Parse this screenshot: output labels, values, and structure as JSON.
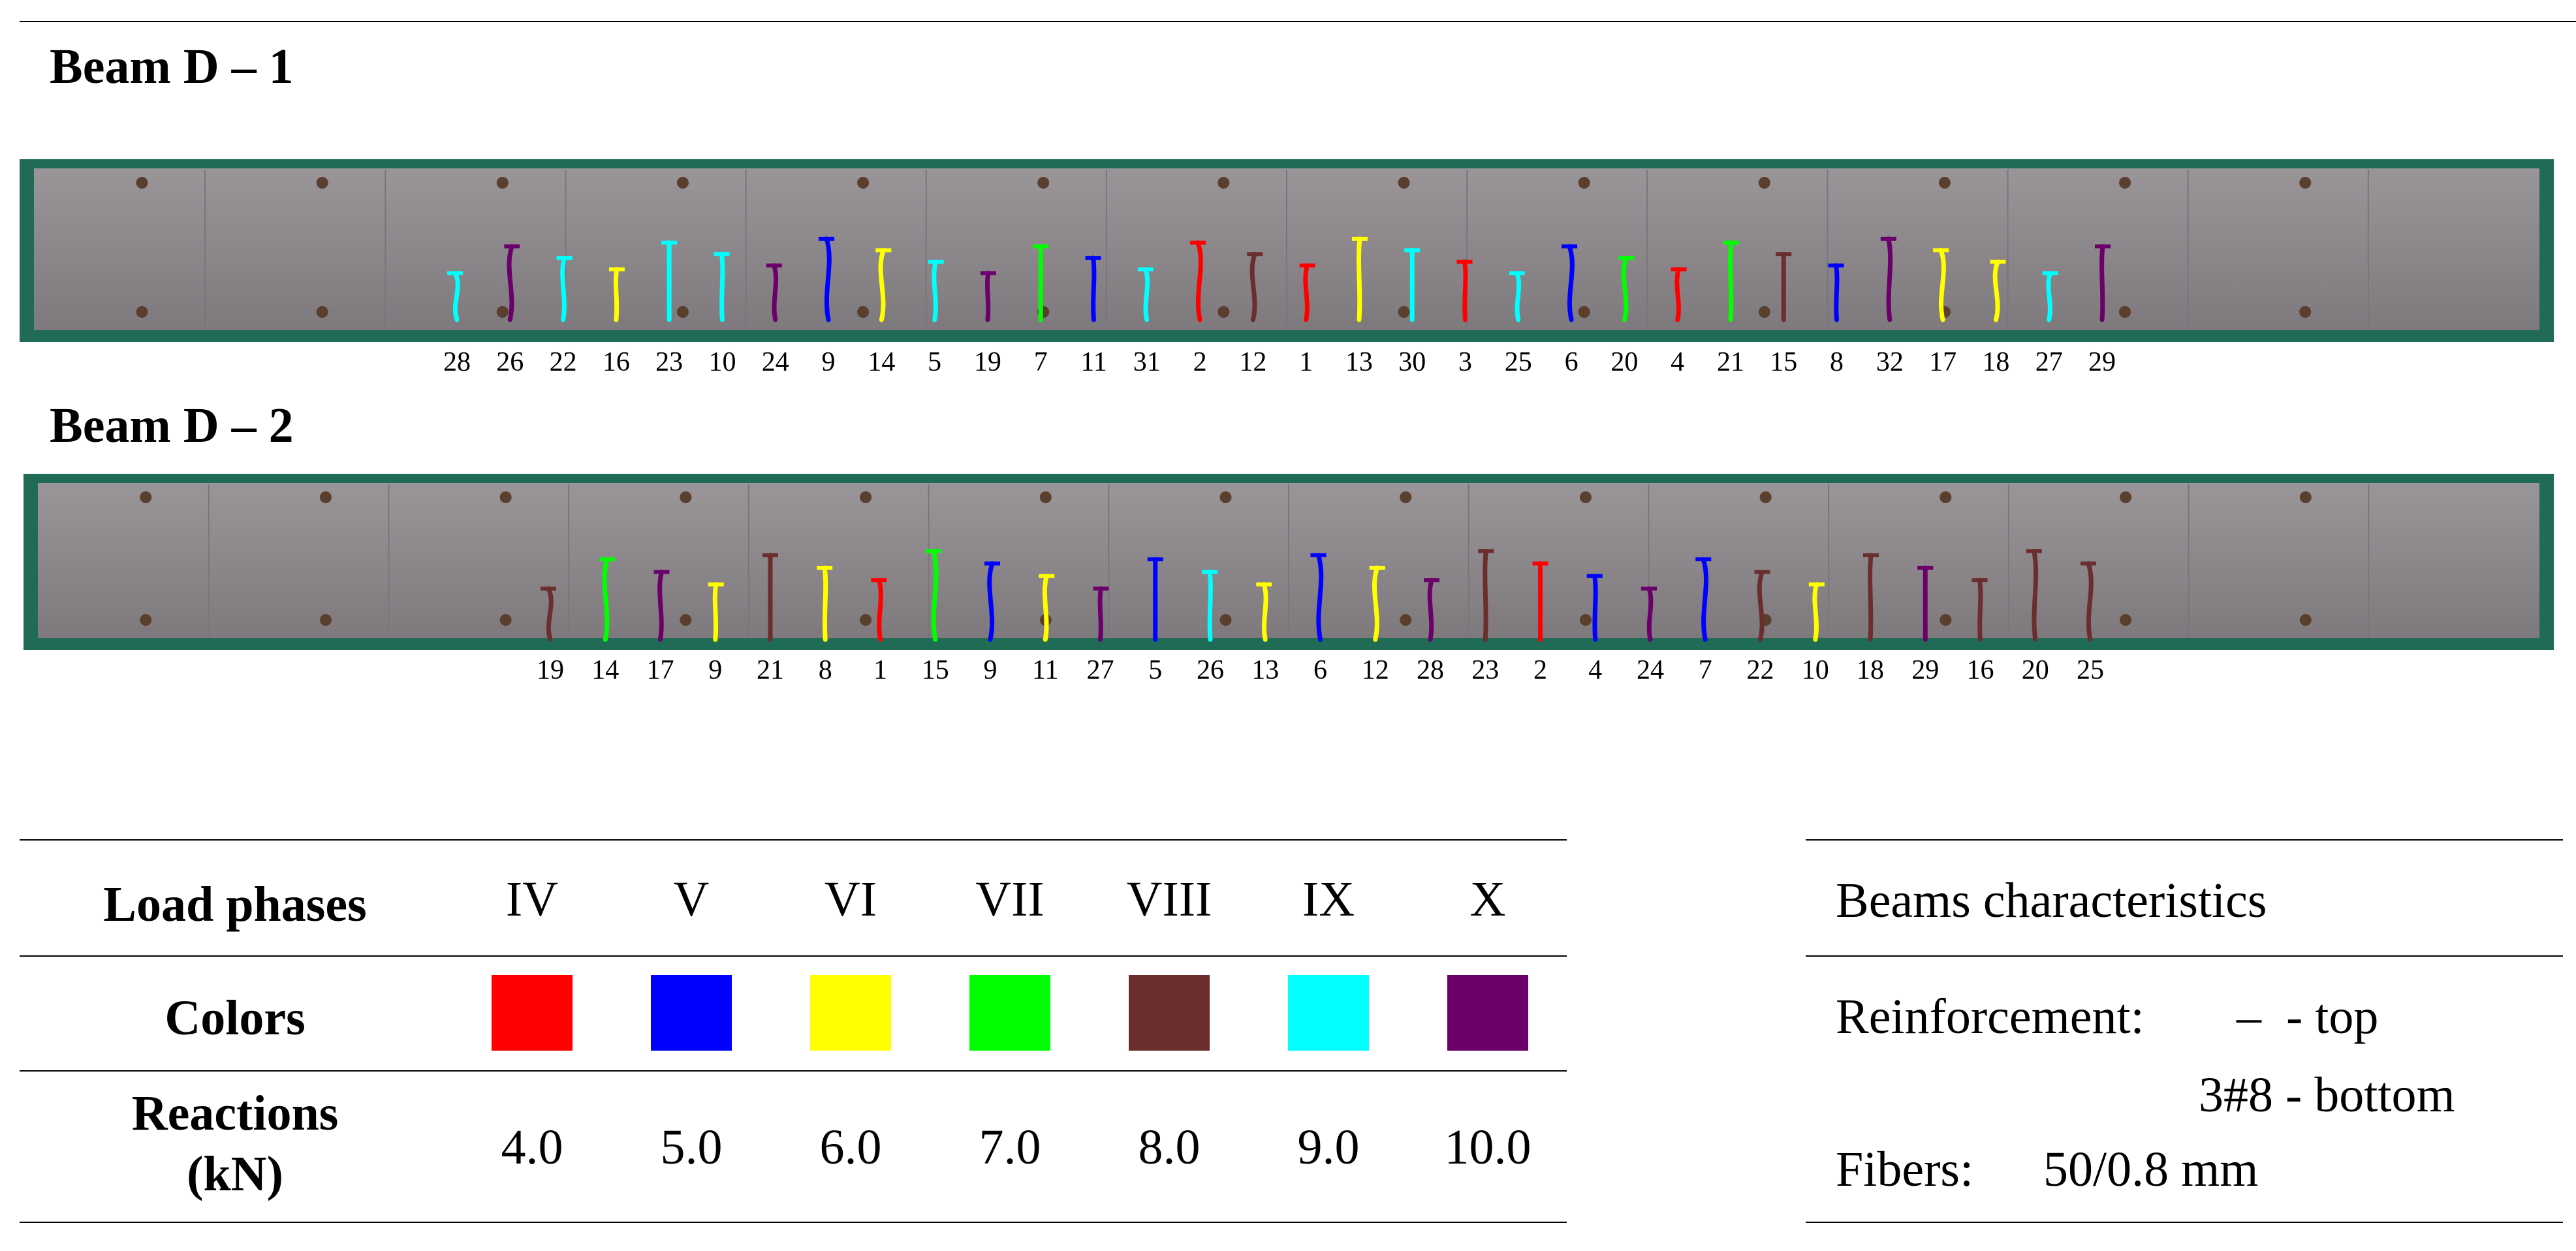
{
  "beams": [
    {
      "title": "Beam D – 1",
      "cracks": [
        {
          "label": "28",
          "color": "#00ffff"
        },
        {
          "label": "26",
          "color": "#6b006b"
        },
        {
          "label": "22",
          "color": "#00ffff"
        },
        {
          "label": "16",
          "color": "#ffff00"
        },
        {
          "label": "23",
          "color": "#00ffff"
        },
        {
          "label": "10",
          "color": "#00ffff"
        },
        {
          "label": "24",
          "color": "#6b006b"
        },
        {
          "label": "9",
          "color": "#0000ff"
        },
        {
          "label": "14",
          "color": "#ffff00"
        },
        {
          "label": "5",
          "color": "#00ffff"
        },
        {
          "label": "19",
          "color": "#6b006b"
        },
        {
          "label": "7",
          "color": "#00ff00"
        },
        {
          "label": "11",
          "color": "#0000ff"
        },
        {
          "label": "31",
          "color": "#00ffff"
        },
        {
          "label": "2",
          "color": "#ff0000"
        },
        {
          "label": "12",
          "color": "#6b2e2e"
        },
        {
          "label": "1",
          "color": "#ff0000"
        },
        {
          "label": "13",
          "color": "#ffff00"
        },
        {
          "label": "30",
          "color": "#00ffff"
        },
        {
          "label": "3",
          "color": "#ff0000"
        },
        {
          "label": "25",
          "color": "#00ffff"
        },
        {
          "label": "6",
          "color": "#0000ff"
        },
        {
          "label": "20",
          "color": "#00ff00"
        },
        {
          "label": "4",
          "color": "#ff0000"
        },
        {
          "label": "21",
          "color": "#00ff00"
        },
        {
          "label": "15",
          "color": "#6b2e2e"
        },
        {
          "label": "8",
          "color": "#0000ff"
        },
        {
          "label": "32",
          "color": "#6b006b"
        },
        {
          "label": "17",
          "color": "#ffff00"
        },
        {
          "label": "18",
          "color": "#ffff00"
        },
        {
          "label": "27",
          "color": "#00ffff"
        },
        {
          "label": "29",
          "color": "#6b006b"
        }
      ]
    },
    {
      "title": "Beam D – 2",
      "cracks": [
        {
          "label": "19",
          "color": "#6b2e2e"
        },
        {
          "label": "14",
          "color": "#00ff00"
        },
        {
          "label": "17",
          "color": "#6b006b"
        },
        {
          "label": "9",
          "color": "#ffff00"
        },
        {
          "label": "21",
          "color": "#6b2e2e"
        },
        {
          "label": "8",
          "color": "#ffff00"
        },
        {
          "label": "1",
          "color": "#ff0000"
        },
        {
          "label": "15",
          "color": "#00ff00"
        },
        {
          "label": "9",
          "color": "#0000ff"
        },
        {
          "label": "11",
          "color": "#ffff00"
        },
        {
          "label": "27",
          "color": "#6b006b"
        },
        {
          "label": "5",
          "color": "#0000ff"
        },
        {
          "label": "26",
          "color": "#00ffff"
        },
        {
          "label": "13",
          "color": "#ffff00"
        },
        {
          "label": "6",
          "color": "#0000ff"
        },
        {
          "label": "12",
          "color": "#ffff00"
        },
        {
          "label": "28",
          "color": "#6b006b"
        },
        {
          "label": "23",
          "color": "#6b2e2e"
        },
        {
          "label": "2",
          "color": "#ff0000"
        },
        {
          "label": "4",
          "color": "#0000ff"
        },
        {
          "label": "24",
          "color": "#6b006b"
        },
        {
          "label": "7",
          "color": "#0000ff"
        },
        {
          "label": "22",
          "color": "#6b2e2e"
        },
        {
          "label": "10",
          "color": "#ffff00"
        },
        {
          "label": "18",
          "color": "#6b2e2e"
        },
        {
          "label": "29",
          "color": "#6b006b"
        },
        {
          "label": "16",
          "color": "#6b2e2e"
        },
        {
          "label": "20",
          "color": "#6b2e2e"
        },
        {
          "label": "25",
          "color": "#6b2e2e"
        }
      ]
    }
  ],
  "legend": {
    "row_headers": {
      "load_phases": "Load phases",
      "colors": "Colors",
      "reactions_line1": "Reactions",
      "reactions_line2": "(kN)"
    },
    "phases": [
      {
        "phase": "IV",
        "color": "#ff0000",
        "reaction": "4.0"
      },
      {
        "phase": "V",
        "color": "#0000ff",
        "reaction": "5.0"
      },
      {
        "phase": "VI",
        "color": "#ffff00",
        "reaction": "6.0"
      },
      {
        "phase": "VII",
        "color": "#00ff00",
        "reaction": "7.0"
      },
      {
        "phase": "VIII",
        "color": "#6b2e2e",
        "reaction": "8.0"
      },
      {
        "phase": "IX",
        "color": "#00ffff",
        "reaction": "9.0"
      },
      {
        "phase": "X",
        "color": "#6b006b",
        "reaction": "10.0"
      }
    ]
  },
  "characteristics": {
    "title": "Beams characteristics",
    "reinforcement_label": "Reinforcement:",
    "reinforcement_top": "–  - top",
    "reinforcement_bottom": "3#8 - bottom",
    "fibers_label": "Fibers:",
    "fibers_value": "50/0.8 mm"
  },
  "colors": {
    "beam_body": "#8f8a8e",
    "mould": "#1f6b55"
  }
}
